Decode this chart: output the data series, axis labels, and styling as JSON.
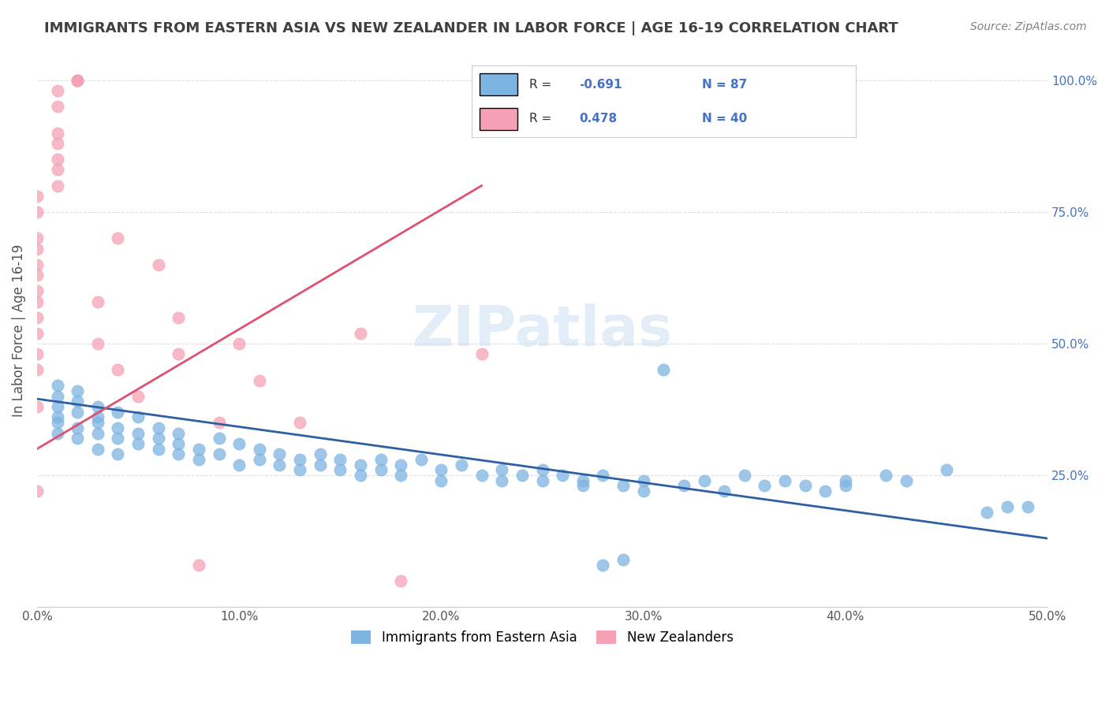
{
  "title": "IMMIGRANTS FROM EASTERN ASIA VS NEW ZEALANDER IN LABOR FORCE | AGE 16-19 CORRELATION CHART",
  "source": "Source: ZipAtlas.com",
  "ylabel": "In Labor Force | Age 16-19",
  "xlabel": "",
  "xlim": [
    0.0,
    0.5
  ],
  "ylim": [
    0.0,
    1.05
  ],
  "xticks": [
    0.0,
    0.1,
    0.2,
    0.3,
    0.4,
    0.5
  ],
  "xticklabels": [
    "0.0%",
    "10.0%",
    "20.0%",
    "30.0%",
    "40.0%",
    "50.0%"
  ],
  "yticks_right": [
    0.25,
    0.5,
    0.75,
    1.0
  ],
  "yticklabels_right": [
    "25.0%",
    "50.0%",
    "75.0%",
    "100.0%"
  ],
  "blue_color": "#7EB4E2",
  "pink_color": "#F5A0B5",
  "blue_line_color": "#2E5FA3",
  "pink_line_color": "#E05070",
  "R_blue": -0.691,
  "N_blue": 87,
  "R_pink": 0.478,
  "N_pink": 40,
  "legend_label_blue": "Immigrants from Eastern Asia",
  "legend_label_pink": "New Zealanders",
  "watermark": "ZIPatlas",
  "background_color": "#FFFFFF",
  "grid_color": "#E0E0E0",
  "title_color": "#404040",
  "source_color": "#808080",
  "blue_scatter": [
    [
      0.01,
      0.38
    ],
    [
      0.01,
      0.35
    ],
    [
      0.01,
      0.4
    ],
    [
      0.01,
      0.42
    ],
    [
      0.01,
      0.36
    ],
    [
      0.01,
      0.33
    ],
    [
      0.02,
      0.37
    ],
    [
      0.02,
      0.34
    ],
    [
      0.02,
      0.39
    ],
    [
      0.02,
      0.32
    ],
    [
      0.02,
      0.41
    ],
    [
      0.03,
      0.36
    ],
    [
      0.03,
      0.33
    ],
    [
      0.03,
      0.35
    ],
    [
      0.03,
      0.38
    ],
    [
      0.03,
      0.3
    ],
    [
      0.04,
      0.34
    ],
    [
      0.04,
      0.37
    ],
    [
      0.04,
      0.32
    ],
    [
      0.04,
      0.29
    ],
    [
      0.05,
      0.33
    ],
    [
      0.05,
      0.36
    ],
    [
      0.05,
      0.31
    ],
    [
      0.06,
      0.34
    ],
    [
      0.06,
      0.3
    ],
    [
      0.06,
      0.32
    ],
    [
      0.07,
      0.33
    ],
    [
      0.07,
      0.29
    ],
    [
      0.07,
      0.31
    ],
    [
      0.08,
      0.3
    ],
    [
      0.08,
      0.28
    ],
    [
      0.09,
      0.32
    ],
    [
      0.09,
      0.29
    ],
    [
      0.1,
      0.31
    ],
    [
      0.1,
      0.27
    ],
    [
      0.11,
      0.3
    ],
    [
      0.11,
      0.28
    ],
    [
      0.12,
      0.29
    ],
    [
      0.12,
      0.27
    ],
    [
      0.13,
      0.28
    ],
    [
      0.13,
      0.26
    ],
    [
      0.14,
      0.29
    ],
    [
      0.14,
      0.27
    ],
    [
      0.15,
      0.28
    ],
    [
      0.15,
      0.26
    ],
    [
      0.16,
      0.27
    ],
    [
      0.16,
      0.25
    ],
    [
      0.17,
      0.28
    ],
    [
      0.17,
      0.26
    ],
    [
      0.18,
      0.27
    ],
    [
      0.18,
      0.25
    ],
    [
      0.19,
      0.28
    ],
    [
      0.2,
      0.26
    ],
    [
      0.2,
      0.24
    ],
    [
      0.21,
      0.27
    ],
    [
      0.22,
      0.25
    ],
    [
      0.23,
      0.26
    ],
    [
      0.23,
      0.24
    ],
    [
      0.24,
      0.25
    ],
    [
      0.25,
      0.26
    ],
    [
      0.25,
      0.24
    ],
    [
      0.26,
      0.25
    ],
    [
      0.27,
      0.24
    ],
    [
      0.27,
      0.23
    ],
    [
      0.28,
      0.25
    ],
    [
      0.29,
      0.23
    ],
    [
      0.3,
      0.24
    ],
    [
      0.3,
      0.22
    ],
    [
      0.31,
      0.45
    ],
    [
      0.32,
      0.23
    ],
    [
      0.33,
      0.24
    ],
    [
      0.34,
      0.22
    ],
    [
      0.35,
      0.25
    ],
    [
      0.36,
      0.23
    ],
    [
      0.37,
      0.24
    ],
    [
      0.38,
      0.23
    ],
    [
      0.39,
      0.22
    ],
    [
      0.4,
      0.24
    ],
    [
      0.4,
      0.23
    ],
    [
      0.42,
      0.25
    ],
    [
      0.43,
      0.24
    ],
    [
      0.45,
      0.26
    ],
    [
      0.47,
      0.18
    ],
    [
      0.48,
      0.19
    ],
    [
      0.49,
      0.19
    ],
    [
      0.28,
      0.08
    ],
    [
      0.29,
      0.09
    ]
  ],
  "pink_scatter": [
    [
      0.0,
      0.22
    ],
    [
      0.0,
      0.38
    ],
    [
      0.0,
      0.45
    ],
    [
      0.0,
      0.48
    ],
    [
      0.0,
      0.52
    ],
    [
      0.0,
      0.55
    ],
    [
      0.0,
      0.58
    ],
    [
      0.0,
      0.6
    ],
    [
      0.0,
      0.63
    ],
    [
      0.0,
      0.65
    ],
    [
      0.0,
      0.68
    ],
    [
      0.0,
      0.7
    ],
    [
      0.0,
      0.75
    ],
    [
      0.0,
      0.78
    ],
    [
      0.01,
      0.8
    ],
    [
      0.01,
      0.83
    ],
    [
      0.01,
      0.85
    ],
    [
      0.01,
      0.88
    ],
    [
      0.01,
      0.9
    ],
    [
      0.01,
      0.95
    ],
    [
      0.01,
      0.98
    ],
    [
      0.02,
      1.0
    ],
    [
      0.02,
      1.0
    ],
    [
      0.02,
      1.0
    ],
    [
      0.03,
      0.58
    ],
    [
      0.03,
      0.5
    ],
    [
      0.04,
      0.45
    ],
    [
      0.04,
      0.7
    ],
    [
      0.05,
      0.4
    ],
    [
      0.06,
      0.65
    ],
    [
      0.07,
      0.55
    ],
    [
      0.07,
      0.48
    ],
    [
      0.08,
      0.08
    ],
    [
      0.09,
      0.35
    ],
    [
      0.1,
      0.5
    ],
    [
      0.11,
      0.43
    ],
    [
      0.13,
      0.35
    ],
    [
      0.16,
      0.52
    ],
    [
      0.18,
      0.05
    ],
    [
      0.22,
      0.48
    ]
  ],
  "blue_trend_x": [
    0.0,
    0.5
  ],
  "blue_trend_y": [
    0.395,
    0.13
  ],
  "pink_trend_x": [
    0.0,
    0.22
  ],
  "pink_trend_y": [
    0.3,
    0.8
  ]
}
